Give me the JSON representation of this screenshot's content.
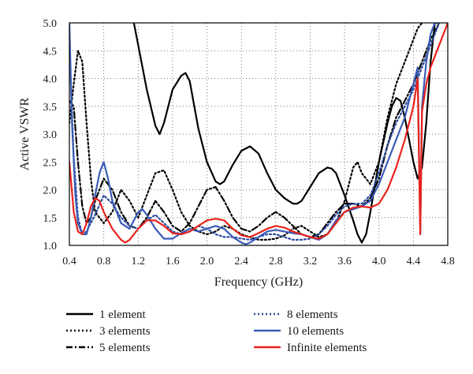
{
  "chart_data": {
    "type": "line",
    "title": "",
    "xlabel": "Frequency (GHz)",
    "ylabel": "Active VSWR",
    "xlim": [
      0.4,
      4.8
    ],
    "ylim": [
      1.0,
      5.0
    ],
    "xticks": [
      "0.4",
      "0.8",
      "1.2",
      "1.6",
      "2.0",
      "2.4",
      "2.8",
      "3.2",
      "3.6",
      "4.0",
      "4.4",
      "4.8"
    ],
    "yticks": [
      "1.0",
      "1.5",
      "2.0",
      "2.5",
      "3.0",
      "3.5",
      "4.0",
      "4.5",
      "5.0"
    ],
    "grid": true,
    "grid_style": "dotted",
    "legend_position": "bottom",
    "series": [
      {
        "name": "1 element",
        "color": "#000000",
        "dash": "solid",
        "x": [
          1.15,
          1.2,
          1.3,
          1.4,
          1.45,
          1.5,
          1.6,
          1.7,
          1.75,
          1.8,
          1.9,
          2.0,
          2.1,
          2.15,
          2.2,
          2.3,
          2.4,
          2.5,
          2.6,
          2.7,
          2.8,
          2.9,
          3.0,
          3.05,
          3.1,
          3.2,
          3.3,
          3.4,
          3.45,
          3.5,
          3.6,
          3.7,
          3.75,
          3.8,
          3.85,
          3.9,
          4.0,
          4.1,
          4.15,
          4.2,
          4.25,
          4.3,
          4.35,
          4.4,
          4.45,
          4.5,
          4.55,
          4.6,
          4.65
        ],
        "y": [
          5.0,
          4.6,
          3.8,
          3.15,
          3.0,
          3.2,
          3.8,
          4.05,
          4.1,
          3.95,
          3.1,
          2.5,
          2.15,
          2.1,
          2.15,
          2.45,
          2.7,
          2.78,
          2.65,
          2.3,
          2.0,
          1.85,
          1.75,
          1.75,
          1.8,
          2.05,
          2.3,
          2.4,
          2.38,
          2.3,
          1.9,
          1.45,
          1.2,
          1.05,
          1.2,
          1.6,
          2.5,
          3.2,
          3.5,
          3.65,
          3.6,
          3.3,
          2.9,
          2.5,
          2.2,
          2.4,
          3.2,
          4.3,
          5.0
        ]
      },
      {
        "name": "3 elements",
        "color": "#000000",
        "dash": "dotted",
        "x": [
          0.4,
          0.45,
          0.5,
          0.55,
          0.6,
          0.65,
          0.7,
          0.8,
          0.9,
          1.0,
          1.1,
          1.2,
          1.3,
          1.4,
          1.5,
          1.6,
          1.7,
          1.8,
          1.9,
          2.0,
          2.1,
          2.2,
          2.3,
          2.4,
          2.5,
          2.6,
          2.7,
          2.8,
          2.9,
          3.0,
          3.1,
          3.2,
          3.3,
          3.4,
          3.5,
          3.6,
          3.7,
          3.75,
          3.8,
          3.9,
          4.0,
          4.1,
          4.2,
          4.3,
          4.4,
          4.45,
          4.5
        ],
        "y": [
          3.2,
          3.9,
          4.5,
          4.3,
          3.2,
          2.2,
          1.6,
          1.4,
          1.6,
          2.0,
          1.8,
          1.5,
          1.9,
          2.3,
          2.35,
          2.0,
          1.6,
          1.35,
          1.25,
          1.2,
          1.25,
          1.35,
          1.3,
          1.2,
          1.15,
          1.1,
          1.1,
          1.12,
          1.18,
          1.3,
          1.35,
          1.25,
          1.15,
          1.2,
          1.4,
          1.8,
          2.4,
          2.5,
          2.3,
          2.1,
          2.5,
          3.3,
          3.9,
          4.3,
          4.7,
          4.9,
          5.0
        ]
      },
      {
        "name": "5 elements",
        "color": "#000000",
        "dash": "dashdot",
        "x": [
          0.4,
          0.45,
          0.5,
          0.55,
          0.6,
          0.65,
          0.7,
          0.8,
          0.9,
          1.0,
          1.1,
          1.2,
          1.3,
          1.4,
          1.5,
          1.6,
          1.7,
          1.8,
          1.9,
          2.0,
          2.1,
          2.2,
          2.3,
          2.4,
          2.5,
          2.6,
          2.7,
          2.8,
          2.9,
          3.0,
          3.1,
          3.2,
          3.3,
          3.4,
          3.5,
          3.6,
          3.7,
          3.8,
          3.9,
          4.0,
          4.1,
          4.2,
          4.3,
          4.4,
          4.45,
          4.5,
          4.6,
          4.7
        ],
        "y": [
          3.6,
          3.5,
          2.5,
          1.7,
          1.4,
          1.5,
          1.8,
          2.2,
          2.0,
          1.6,
          1.35,
          1.3,
          1.5,
          1.8,
          1.6,
          1.35,
          1.25,
          1.4,
          1.7,
          2.0,
          2.05,
          1.8,
          1.5,
          1.3,
          1.25,
          1.35,
          1.5,
          1.6,
          1.5,
          1.35,
          1.2,
          1.15,
          1.2,
          1.4,
          1.6,
          1.75,
          1.75,
          1.7,
          1.85,
          2.2,
          2.8,
          3.3,
          3.6,
          3.9,
          4.1,
          4.3,
          4.7,
          5.0
        ]
      },
      {
        "name": "8 elements",
        "color": "#2b4aa0",
        "dash": "dotted",
        "x": [
          0.4,
          0.45,
          0.5,
          0.55,
          0.6,
          0.7,
          0.8,
          0.9,
          1.0,
          1.1,
          1.2,
          1.3,
          1.4,
          1.5,
          1.6,
          1.7,
          1.8,
          1.9,
          2.0,
          2.1,
          2.2,
          2.3,
          2.4,
          2.5,
          2.6,
          2.7,
          2.8,
          2.9,
          3.0,
          3.1,
          3.2,
          3.3,
          3.4,
          3.5,
          3.6,
          3.7,
          3.8,
          3.9,
          4.0,
          4.1,
          4.2,
          4.3,
          4.4,
          4.45,
          4.5,
          4.6,
          4.7
        ],
        "y": [
          4.6,
          2.6,
          1.5,
          1.2,
          1.25,
          1.55,
          1.9,
          1.75,
          1.5,
          1.35,
          1.3,
          1.45,
          1.55,
          1.4,
          1.25,
          1.2,
          1.25,
          1.35,
          1.3,
          1.2,
          1.15,
          1.15,
          1.12,
          1.1,
          1.15,
          1.2,
          1.2,
          1.15,
          1.1,
          1.1,
          1.12,
          1.2,
          1.35,
          1.55,
          1.7,
          1.75,
          1.75,
          1.9,
          2.3,
          2.8,
          3.2,
          3.5,
          3.8,
          4.0,
          4.2,
          4.6,
          5.0
        ]
      },
      {
        "name": "10 elements",
        "color": "#3a5bb5",
        "dash": "solid",
        "x": [
          0.4,
          0.43,
          0.47,
          0.5,
          0.55,
          0.6,
          0.65,
          0.7,
          0.75,
          0.8,
          0.85,
          0.9,
          1.0,
          1.1,
          1.2,
          1.25,
          1.3,
          1.4,
          1.5,
          1.6,
          1.7,
          1.8,
          1.9,
          2.0,
          2.1,
          2.2,
          2.3,
          2.4,
          2.45,
          2.5,
          2.6,
          2.7,
          2.8,
          2.9,
          3.0,
          3.1,
          3.2,
          3.3,
          3.4,
          3.5,
          3.6,
          3.7,
          3.8,
          3.9,
          4.0,
          4.1,
          4.2,
          4.3,
          4.35,
          4.4,
          4.45,
          4.48,
          4.5,
          4.55,
          4.6,
          4.65,
          4.7
        ],
        "y": [
          5.0,
          3.2,
          1.9,
          1.4,
          1.2,
          1.2,
          1.5,
          1.9,
          2.3,
          2.5,
          2.2,
          1.8,
          1.4,
          1.3,
          1.6,
          1.65,
          1.55,
          1.3,
          1.12,
          1.12,
          1.22,
          1.3,
          1.25,
          1.3,
          1.35,
          1.3,
          1.15,
          1.05,
          1.02,
          1.05,
          1.15,
          1.25,
          1.28,
          1.25,
          1.22,
          1.2,
          1.15,
          1.1,
          1.2,
          1.45,
          1.6,
          1.65,
          1.7,
          1.8,
          2.1,
          2.5,
          2.9,
          3.3,
          3.6,
          3.9,
          4.2,
          1.2,
          3.5,
          4.3,
          4.8,
          5.0,
          5.0
        ]
      },
      {
        "name": "Infinite elements",
        "color": "#e8231c",
        "dash": "solid",
        "x": [
          0.4,
          0.45,
          0.5,
          0.55,
          0.6,
          0.65,
          0.7,
          0.75,
          0.8,
          0.9,
          1.0,
          1.05,
          1.1,
          1.2,
          1.3,
          1.4,
          1.5,
          1.6,
          1.7,
          1.8,
          1.9,
          2.0,
          2.1,
          2.2,
          2.3,
          2.4,
          2.5,
          2.6,
          2.7,
          2.8,
          2.9,
          3.0,
          3.1,
          3.2,
          3.3,
          3.4,
          3.5,
          3.6,
          3.7,
          3.8,
          3.9,
          4.0,
          4.1,
          4.2,
          4.3,
          4.4,
          4.45,
          4.48,
          4.5,
          4.55,
          4.6,
          4.7,
          4.8
        ],
        "y": [
          2.5,
          1.6,
          1.25,
          1.2,
          1.4,
          1.7,
          1.85,
          1.8,
          1.6,
          1.3,
          1.1,
          1.05,
          1.1,
          1.3,
          1.45,
          1.45,
          1.35,
          1.22,
          1.2,
          1.25,
          1.35,
          1.45,
          1.48,
          1.45,
          1.3,
          1.18,
          1.15,
          1.22,
          1.3,
          1.35,
          1.32,
          1.25,
          1.2,
          1.15,
          1.12,
          1.2,
          1.4,
          1.6,
          1.68,
          1.7,
          1.68,
          1.75,
          2.0,
          2.4,
          2.9,
          3.5,
          4.0,
          1.2,
          3.4,
          3.9,
          4.2,
          4.6,
          5.0
        ]
      }
    ]
  }
}
